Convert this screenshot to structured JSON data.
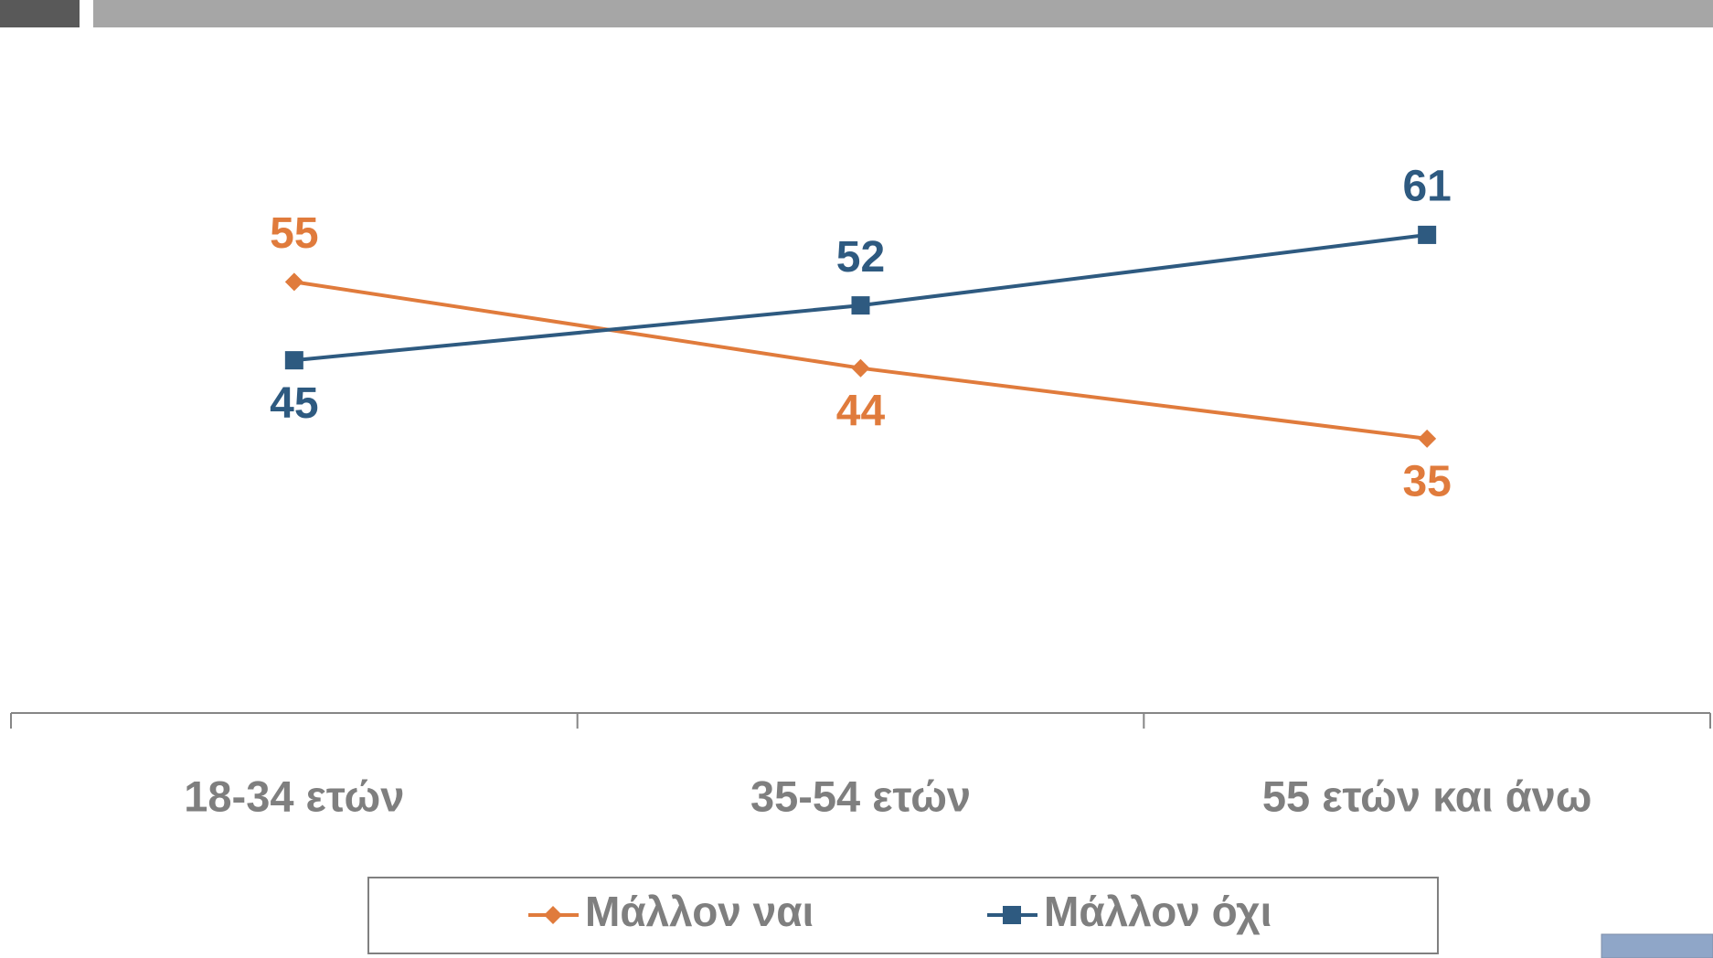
{
  "chart_data": {
    "type": "line",
    "categories": [
      "18-34 ετών",
      "35-54 ετών",
      "55 ετών και άνω"
    ],
    "series": [
      {
        "name": "Μάλλον ναι",
        "color": "#E07B3C",
        "marker": "diamond",
        "values": [
          55,
          44,
          35
        ]
      },
      {
        "name": "Μάλλον όχι",
        "color": "#2E5A80",
        "marker": "square",
        "values": [
          45,
          52,
          61
        ]
      }
    ],
    "ylim": [
      0,
      80
    ],
    "legend": "bottom"
  }
}
